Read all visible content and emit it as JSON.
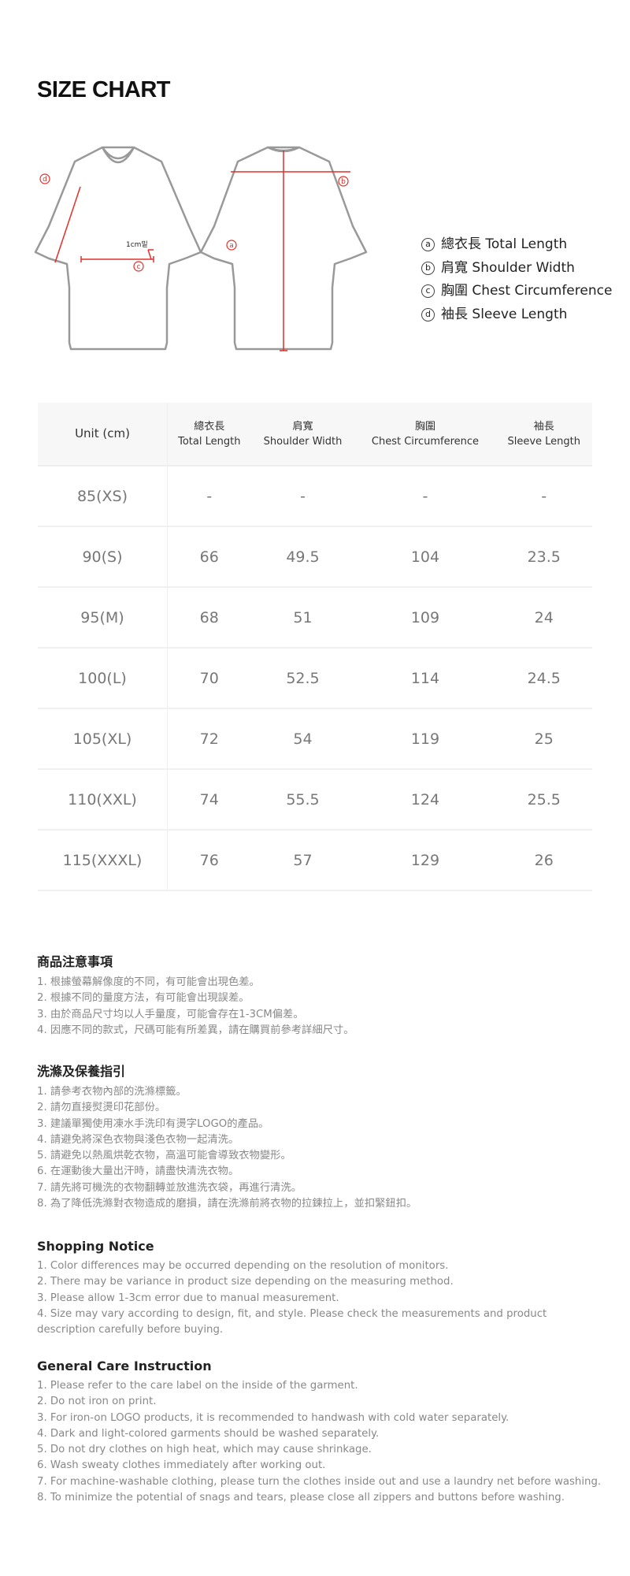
{
  "title": "SIZE CHART",
  "diagram": {
    "note": "1cm밑",
    "markers": [
      "a",
      "b",
      "c",
      "d"
    ],
    "accent_color": "#e0302a"
  },
  "legend": [
    {
      "mark": "a",
      "label": "總衣長 Total Length"
    },
    {
      "mark": "b",
      "label": "肩寬 Shoulder Width"
    },
    {
      "mark": "c",
      "label": "胸圍 Chest Circumference"
    },
    {
      "mark": "d",
      "label": "袖長 Sleeve Length"
    }
  ],
  "table": {
    "unit": "Unit (cm)",
    "headers": [
      {
        "zh": "總衣長",
        "en": "Total Length"
      },
      {
        "zh": "肩寬",
        "en": "Shoulder Width"
      },
      {
        "zh": "胸圍",
        "en": "Chest Circumference"
      },
      {
        "zh": "袖長",
        "en": "Sleeve Length"
      }
    ],
    "rows": [
      {
        "size": "85(XS)",
        "values": [
          "-",
          "-",
          "-",
          "-"
        ]
      },
      {
        "size": "90(S)",
        "values": [
          "66",
          "49.5",
          "104",
          "23.5"
        ]
      },
      {
        "size": "95(M)",
        "values": [
          "68",
          "51",
          "109",
          "24"
        ]
      },
      {
        "size": "100(L)",
        "values": [
          "70",
          "52.5",
          "114",
          "24.5"
        ]
      },
      {
        "size": "105(XL)",
        "values": [
          "72",
          "54",
          "119",
          "25"
        ]
      },
      {
        "size": "110(XXL)",
        "values": [
          "74",
          "55.5",
          "124",
          "25.5"
        ]
      },
      {
        "size": "115(XXXL)",
        "values": [
          "76",
          "57",
          "129",
          "26"
        ]
      }
    ]
  },
  "sections": [
    {
      "heading": "商品注意事項",
      "lines": [
        "1. 根據螢幕解像度的不同，有可能會出現色差。",
        "2. 根據不同的量度方法，有可能會出現誤差。",
        "3. 由於商品尺寸均以人手量度，可能會存在1-3CM偏差。",
        "4. 因應不同的款式，尺碼可能有所差異，請在購買前參考詳細尺寸。"
      ]
    },
    {
      "heading": "洗滌及保養指引",
      "lines": [
        "1. 請參考衣物內部的洗滌標籤。",
        "2. 請勿直接熨燙印花部份。",
        "3. 建議單獨使用凍水手洗印有燙字LOGO的產品。",
        "4. 請避免將深色衣物與淺色衣物一起清洗。",
        "5. 請避免以熱風烘乾衣物，高溫可能會導致衣物變形。",
        "6. 在運動後大量出汗時，請盡快清洗衣物。",
        "7. 請先將可機洗的衣物翻轉並放進洗衣袋，再進行清洗。",
        "8. 為了降低洗滌對衣物造成的磨損，請在洗滌前將衣物的拉鍊拉上，並扣緊鈕扣。"
      ]
    },
    {
      "heading": "Shopping Notice",
      "lines": [
        "1. Color differences may be occurred depending on the resolution of monitors.",
        "2. There may be variance in product size depending on the measuring method.",
        "3. Please allow 1-3cm error due to manual measurement.",
        "4. Size may vary according to design, fit, and style. Please check the measurements and product description carefully before buying."
      ]
    },
    {
      "heading": "General Care Instruction",
      "lines": [
        "1. Please refer to the care label on the inside of the garment.",
        "2. Do not iron on print.",
        "3. For iron-on LOGO products, it is recommended to handwash with cold water separately.",
        "4. Dark and light-colored garments should be washed separately.",
        "5. Do not dry clothes on high heat, which may cause shrinkage.",
        "6. Wash sweaty clothes immediately after working out.",
        "7. For machine-washable clothing, please turn the clothes inside out and use a laundry net before washing.",
        "8. To minimize the potential of snags and tears, please close all zippers and buttons before washing."
      ]
    }
  ]
}
